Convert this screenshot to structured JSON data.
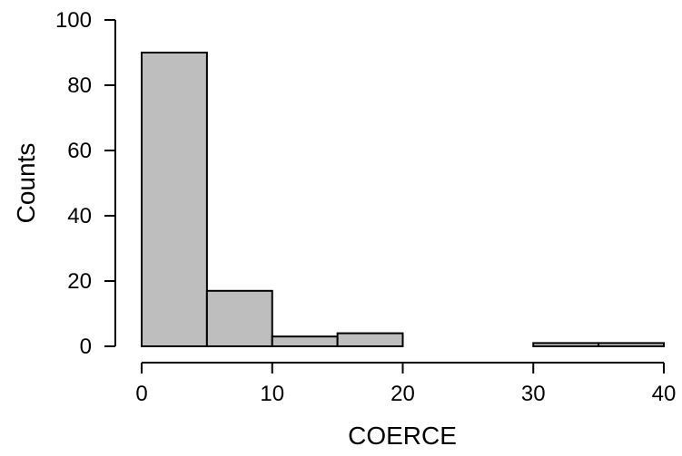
{
  "chart_data": {
    "type": "bar",
    "subtype": "histogram",
    "title": "",
    "xlabel": "COERCE",
    "ylabel": "Counts",
    "bins": [
      {
        "start": 0,
        "end": 5,
        "count": 90
      },
      {
        "start": 5,
        "end": 10,
        "count": 17
      },
      {
        "start": 10,
        "end": 15,
        "count": 3
      },
      {
        "start": 15,
        "end": 20,
        "count": 4
      },
      {
        "start": 20,
        "end": 25,
        "count": 0
      },
      {
        "start": 25,
        "end": 30,
        "count": 0
      },
      {
        "start": 30,
        "end": 35,
        "count": 1
      },
      {
        "start": 35,
        "end": 40,
        "count": 1
      }
    ],
    "xlim": [
      0,
      40
    ],
    "ylim": [
      0,
      100
    ],
    "x_ticks": [
      0,
      10,
      20,
      30,
      40
    ],
    "y_ticks": [
      0,
      20,
      40,
      60,
      80,
      100
    ],
    "grid": false,
    "legend": "none",
    "colors": {
      "bar_fill": "#bebebe",
      "bar_stroke": "#000000",
      "axis": "#000000",
      "background": "#ffffff"
    }
  }
}
